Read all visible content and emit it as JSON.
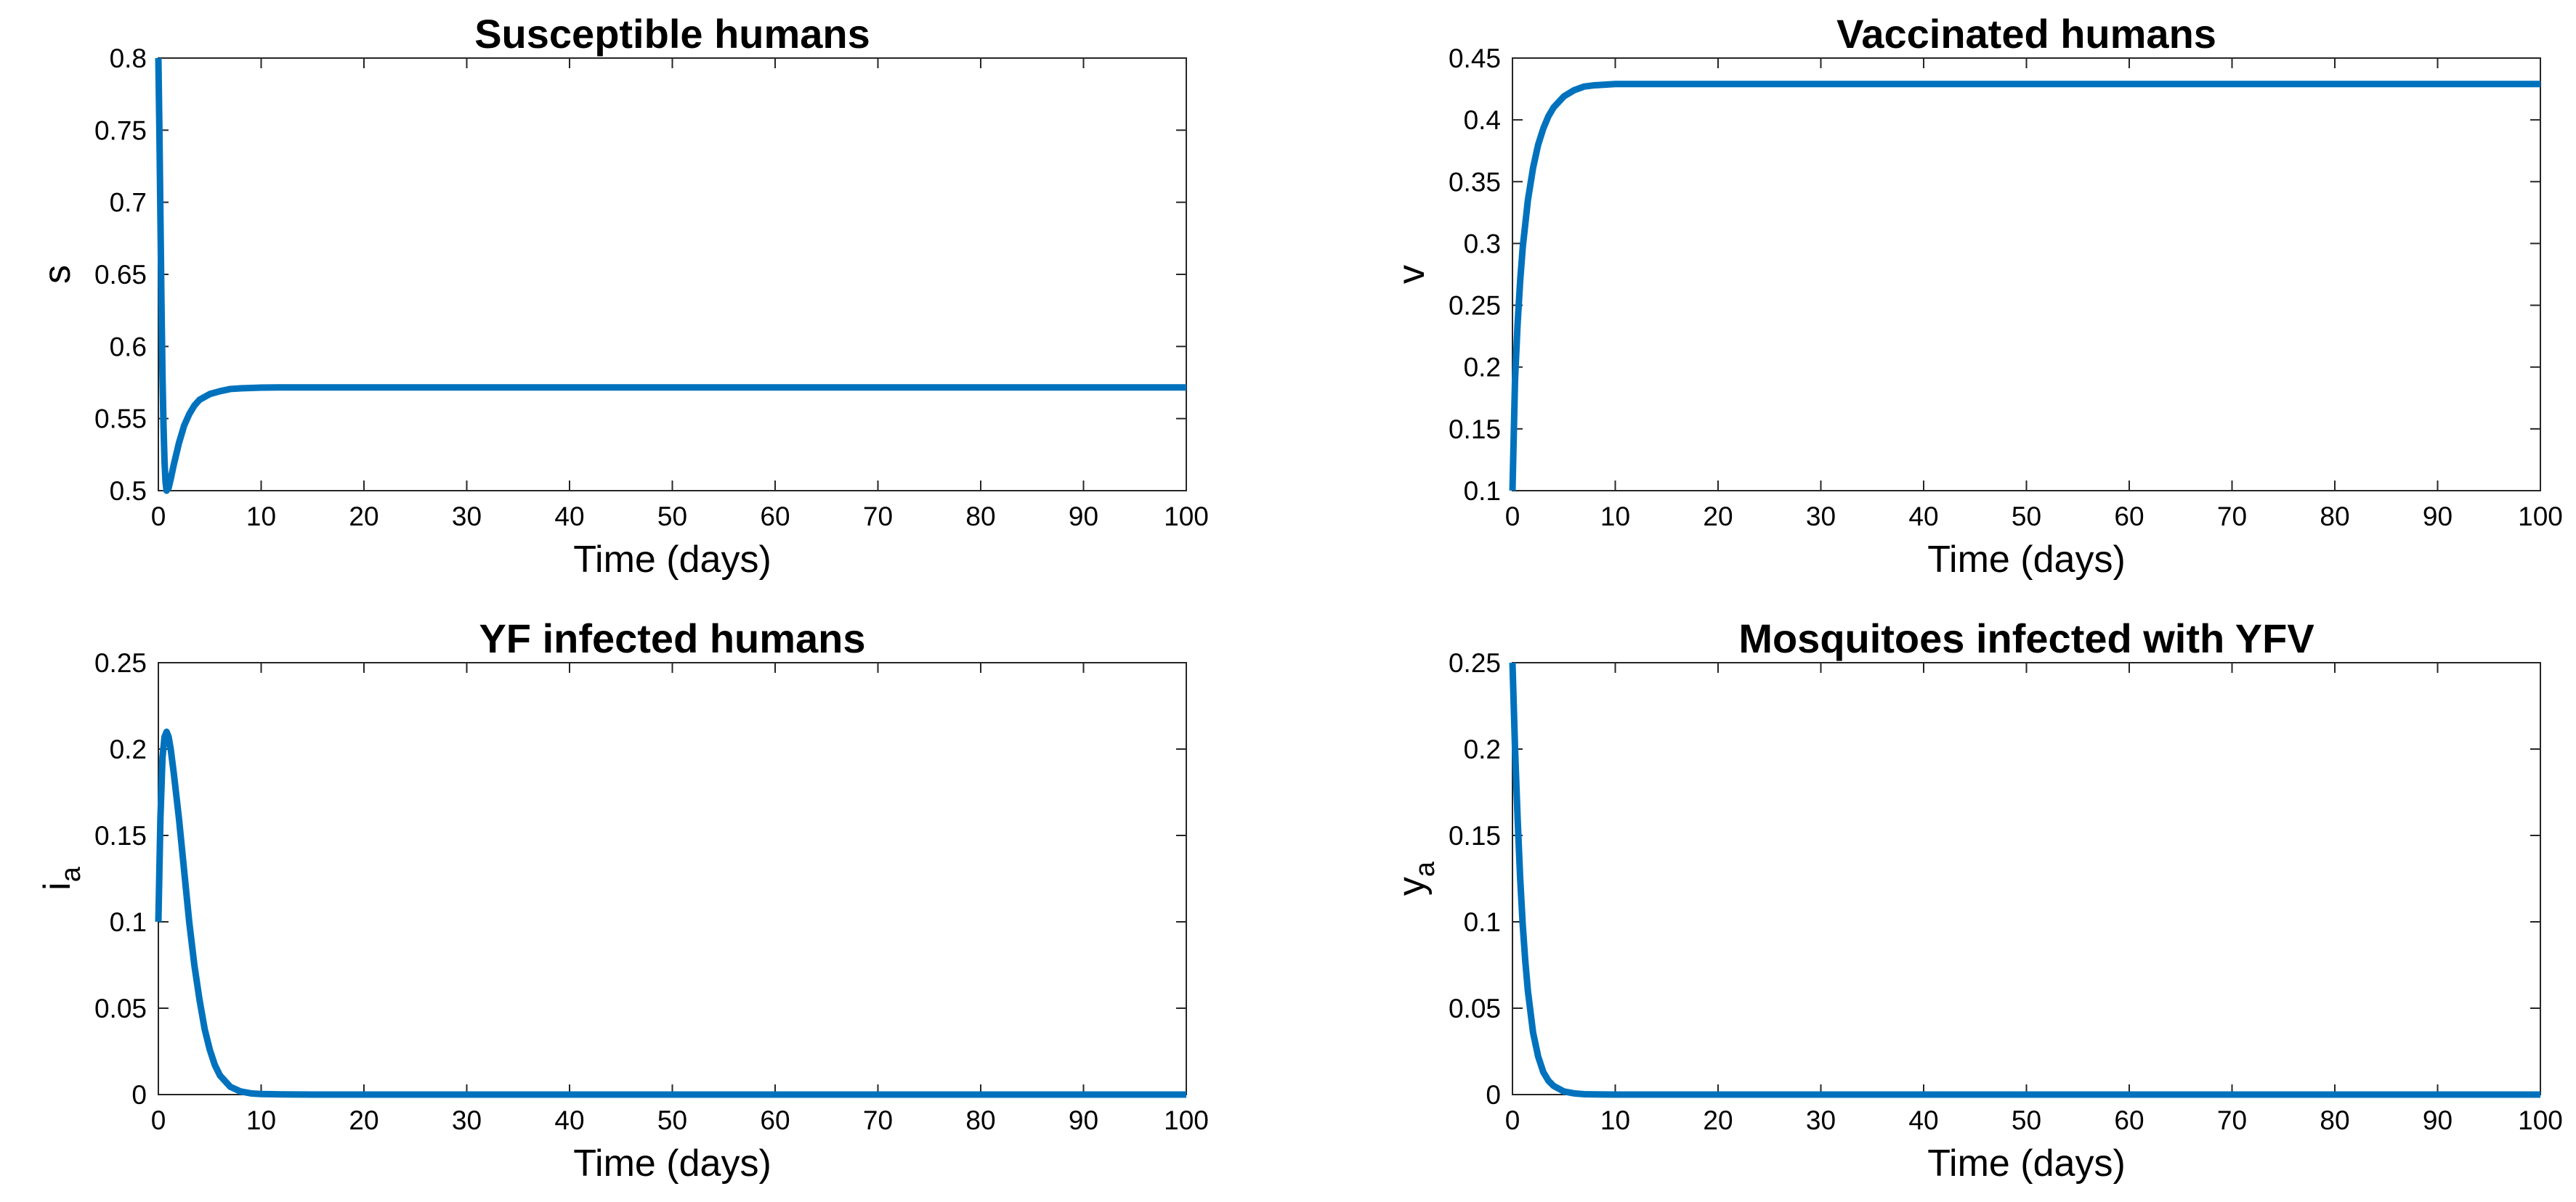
{
  "chart_data": [
    {
      "type": "line",
      "title": "Susceptible humans",
      "xlabel": "Time (days)",
      "ylabel": "s",
      "ylabel_sub": "",
      "xlim": [
        0,
        100
      ],
      "ylim": [
        0.5,
        0.8
      ],
      "xticks": [
        "0",
        "10",
        "20",
        "30",
        "40",
        "50",
        "60",
        "70",
        "80",
        "90",
        "100"
      ],
      "yticks": [
        "0.5",
        "0.55",
        "0.6",
        "0.65",
        "0.7",
        "0.75",
        "0.8"
      ],
      "grid": false,
      "series": [
        {
          "color": "#0072BD",
          "x": [
            0,
            0.1,
            0.2,
            0.3,
            0.4,
            0.5,
            0.6,
            0.7,
            0.8,
            1.0,
            1.2,
            1.5,
            2,
            2.5,
            3,
            3.5,
            4,
            5,
            6,
            7,
            8,
            10,
            12,
            15,
            20,
            30,
            40,
            50,
            60,
            70,
            80,
            90,
            100
          ],
          "y": [
            0.8,
            0.75,
            0.69,
            0.63,
            0.58,
            0.545,
            0.52,
            0.506,
            0.5,
            0.502,
            0.508,
            0.518,
            0.533,
            0.545,
            0.553,
            0.559,
            0.563,
            0.567,
            0.569,
            0.5705,
            0.571,
            0.5715,
            0.5716,
            0.5716,
            0.5716,
            0.5716,
            0.5716,
            0.5716,
            0.5716,
            0.5716,
            0.5716,
            0.5716,
            0.5716
          ]
        }
      ]
    },
    {
      "type": "line",
      "title": "Vaccinated humans",
      "xlabel": "Time (days)",
      "ylabel": "v",
      "ylabel_sub": "",
      "xlim": [
        0,
        100
      ],
      "ylim": [
        0.1,
        0.45
      ],
      "xticks": [
        "0",
        "10",
        "20",
        "30",
        "40",
        "50",
        "60",
        "70",
        "80",
        "90",
        "100"
      ],
      "yticks": [
        "0.1",
        "0.15",
        "0.2",
        "0.25",
        "0.3",
        "0.35",
        "0.4",
        "0.45"
      ],
      "grid": false,
      "series": [
        {
          "color": "#0072BD",
          "x": [
            0,
            0.25,
            0.5,
            0.75,
            1,
            1.5,
            2,
            2.5,
            3,
            3.5,
            4,
            5,
            6,
            7,
            8,
            10,
            15,
            20,
            30,
            40,
            50,
            60,
            70,
            80,
            90,
            100
          ],
          "y": [
            0.1,
            0.19,
            0.235,
            0.27,
            0.297,
            0.335,
            0.361,
            0.38,
            0.393,
            0.403,
            0.41,
            0.419,
            0.424,
            0.427,
            0.428,
            0.429,
            0.429,
            0.429,
            0.429,
            0.429,
            0.429,
            0.429,
            0.429,
            0.429,
            0.429,
            0.429
          ]
        }
      ]
    },
    {
      "type": "line",
      "title": "YF infected humans",
      "xlabel": "Time (days)",
      "ylabel": "i",
      "ylabel_sub": "a",
      "xlim": [
        0,
        100
      ],
      "ylim": [
        0,
        0.25
      ],
      "xticks": [
        "0",
        "10",
        "20",
        "30",
        "40",
        "50",
        "60",
        "70",
        "80",
        "90",
        "100"
      ],
      "yticks": [
        "0",
        "0.05",
        "0.1",
        "0.15",
        "0.2",
        "0.25"
      ],
      "grid": false,
      "series": [
        {
          "color": "#0072BD",
          "x": [
            0,
            0.2,
            0.4,
            0.6,
            0.8,
            1.0,
            1.2,
            1.5,
            2,
            2.5,
            3,
            3.5,
            4,
            4.5,
            5,
            5.5,
            6,
            7,
            8,
            9,
            10,
            12,
            15,
            20,
            30,
            40,
            50,
            60,
            70,
            80,
            90,
            100
          ],
          "y": [
            0.1,
            0.16,
            0.195,
            0.207,
            0.21,
            0.207,
            0.2,
            0.186,
            0.16,
            0.13,
            0.1,
            0.075,
            0.055,
            0.038,
            0.026,
            0.017,
            0.011,
            0.0045,
            0.0018,
            0.0007,
            0.0003,
            0.0001,
            0,
            0,
            0,
            0,
            0,
            0,
            0,
            0,
            0,
            0
          ]
        }
      ]
    },
    {
      "type": "line",
      "title": "Mosquitoes infected with YFV",
      "xlabel": "Time (days)",
      "ylabel": "y",
      "ylabel_sub": "a",
      "xlim": [
        0,
        100
      ],
      "ylim": [
        0,
        0.25
      ],
      "xticks": [
        "0",
        "10",
        "20",
        "30",
        "40",
        "50",
        "60",
        "70",
        "80",
        "90",
        "100"
      ],
      "yticks": [
        "0",
        "0.05",
        "0.1",
        "0.15",
        "0.2",
        "0.25"
      ],
      "grid": false,
      "series": [
        {
          "color": "#0072BD",
          "x": [
            0,
            0.25,
            0.5,
            0.75,
            1,
            1.25,
            1.5,
            2,
            2.5,
            3,
            3.5,
            4,
            5,
            6,
            7,
            8,
            10,
            15,
            20,
            30,
            40,
            50,
            60,
            70,
            80,
            90,
            100
          ],
          "y": [
            0.25,
            0.2,
            0.16,
            0.125,
            0.098,
            0.077,
            0.06,
            0.036,
            0.022,
            0.013,
            0.008,
            0.005,
            0.0018,
            0.0007,
            0.0002,
            0.0001,
            0,
            0,
            0,
            0,
            0,
            0,
            0,
            0,
            0,
            0,
            0
          ]
        }
      ]
    }
  ]
}
